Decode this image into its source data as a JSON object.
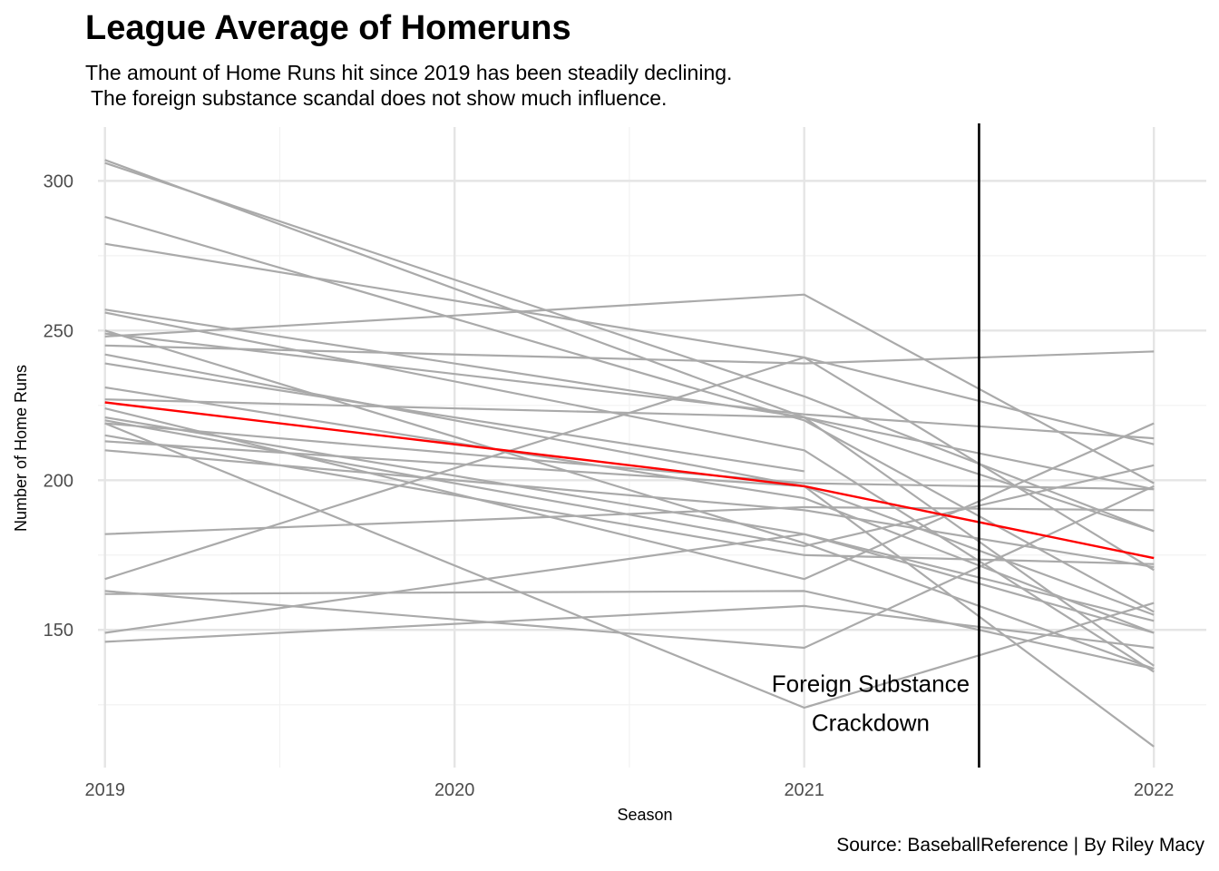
{
  "chart_data": {
    "type": "line",
    "title": "League Average of Homeruns",
    "subtitle": "The amount of Home Runs hit since 2019 has been steadily declining.\n The foreign substance scandal does not show much influence.",
    "xlabel": "Season",
    "ylabel": "Number of Home Runs",
    "caption": "Source: BaseballReference | By Riley Macy",
    "x": [
      2019,
      2020,
      2021,
      2022
    ],
    "x_ticks": [
      "2019",
      "2020",
      "2021",
      "2022"
    ],
    "y_ticks": [
      "150",
      "200",
      "250",
      "300"
    ],
    "xlim": [
      2018.98,
      2022.15
    ],
    "ylim": [
      104,
      318
    ],
    "grid": true,
    "legend": "none",
    "team_color": "#AAAAAA",
    "average_color": "#FF0000",
    "team_series": [
      {
        "values": [
          307,
          null,
          221,
          138
        ]
      },
      {
        "values": [
          306,
          null,
          228,
          183
        ]
      },
      {
        "values": [
          288,
          null,
          220,
          156
        ]
      },
      {
        "values": [
          279,
          null,
          241,
          170
        ]
      },
      {
        "values": [
          257,
          null,
          221,
          183
        ]
      },
      {
        "values": [
          256,
          null,
          210,
          136
        ]
      },
      {
        "values": [
          250,
          null,
          179,
          137
        ]
      },
      {
        "values": [
          249,
          null,
          222,
          214
        ]
      },
      {
        "values": [
          248,
          null,
          262,
          199
        ]
      },
      {
        "values": [
          245,
          null,
          239,
          243
        ]
      },
      {
        "values": [
          242,
          null,
          198,
          155
        ]
      },
      {
        "values": [
          239,
          null,
          203,
          null
        ]
      },
      {
        "values": [
          231,
          null,
          194,
          149
        ]
      },
      {
        "values": [
          227,
          null,
          221,
          197
        ]
      },
      {
        "values": [
          224,
          null,
          167,
          219
        ]
      },
      {
        "values": [
          221,
          null,
          182,
          149
        ]
      },
      {
        "values": [
          220,
          null,
          178,
          205
        ]
      },
      {
        "values": [
          219,
          null,
          199,
          197
        ]
      },
      {
        "values": [
          219,
          null,
          124,
          159
        ]
      },
      {
        "values": [
          215,
          null,
          175,
          172
        ]
      },
      {
        "values": [
          213,
          null,
          198,
          111
        ]
      },
      {
        "values": [
          210,
          null,
          190,
          171
        ]
      },
      {
        "values": [
          182,
          null,
          191,
          190
        ]
      },
      {
        "values": [
          167,
          null,
          241,
          212
        ]
      },
      {
        "values": [
          163,
          null,
          144,
          198
        ]
      },
      {
        "values": [
          162,
          null,
          163,
          137
        ]
      },
      {
        "values": [
          149,
          null,
          182,
          153
        ]
      },
      {
        "values": [
          146,
          null,
          158,
          144
        ]
      }
    ],
    "average_series": {
      "values": [
        226,
        null,
        198,
        174
      ]
    },
    "vline": {
      "x": 2021.5,
      "color": "#000000"
    },
    "annotation": {
      "line1": "Foreign Substance",
      "line2": "Crackdown",
      "x": 2021.19,
      "y1": 132,
      "y2": 119
    }
  }
}
